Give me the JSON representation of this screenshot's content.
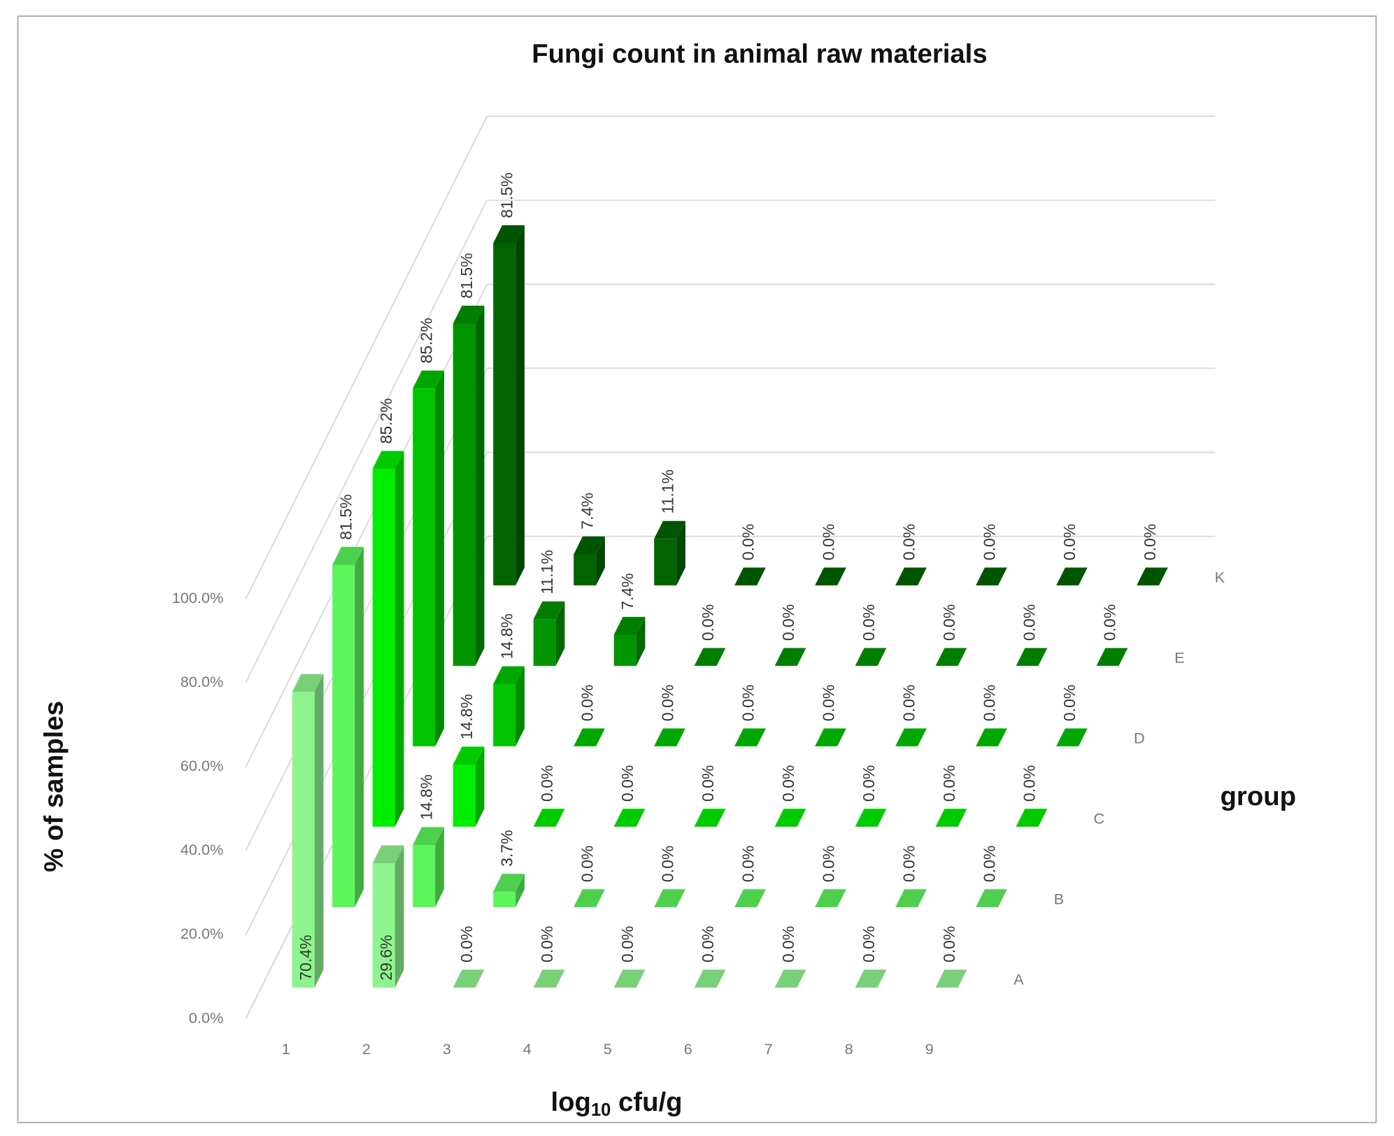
{
  "chart_data": {
    "type": "bar3d",
    "title": "Fungi count in animal raw materials",
    "ylabel": "% of samples",
    "xlabel_parts": [
      "log",
      "10",
      " cfu/g"
    ],
    "zlabel": "group",
    "categories": [
      "1",
      "2",
      "3",
      "4",
      "5",
      "6",
      "7",
      "8",
      "9"
    ],
    "ylim": [
      0,
      100
    ],
    "yticks": [
      {
        "value": 0,
        "label": "0.0%"
      },
      {
        "value": 20,
        "label": "20.0%"
      },
      {
        "value": 40,
        "label": "40.0%"
      },
      {
        "value": 60,
        "label": "60.0%"
      },
      {
        "value": 80,
        "label": "80.0%"
      },
      {
        "value": 100,
        "label": "100.0%"
      }
    ],
    "grid": true,
    "series": [
      {
        "name": "A",
        "color": "#8ef58e",
        "values": [
          70.4,
          29.6,
          0,
          0,
          0,
          0,
          0,
          0,
          0
        ],
        "value_labels": [
          "70.4%",
          "29.6%",
          "0.0%",
          "0.0%",
          "0.0%",
          "0.0%",
          "0.0%",
          "0.0%",
          "0.0%"
        ]
      },
      {
        "name": "B",
        "color": "#5cf55c",
        "values": [
          81.5,
          14.8,
          3.7,
          0,
          0,
          0,
          0,
          0,
          0
        ],
        "value_labels": [
          "81.5%",
          "14.8%",
          "3.7%",
          "0.0%",
          "0.0%",
          "0.0%",
          "0.0%",
          "0.0%",
          "0.0%"
        ]
      },
      {
        "name": "C",
        "color": "#00ee00",
        "values": [
          85.2,
          14.8,
          0,
          0,
          0,
          0,
          0,
          0,
          0
        ],
        "value_labels": [
          "85.2%",
          "14.8%",
          "0.0%",
          "0.0%",
          "0.0%",
          "0.0%",
          "0.0%",
          "0.0%",
          "0.0%"
        ]
      },
      {
        "name": "D",
        "color": "#00c400",
        "values": [
          85.2,
          14.8,
          0,
          0,
          0,
          0,
          0,
          0,
          0
        ],
        "value_labels": [
          "85.2%",
          "14.8%",
          "0.0%",
          "0.0%",
          "0.0%",
          "0.0%",
          "0.0%",
          "0.0%",
          "0.0%"
        ]
      },
      {
        "name": "E",
        "color": "#009400",
        "values": [
          81.5,
          11.1,
          7.4,
          0,
          0,
          0,
          0,
          0,
          0
        ],
        "value_labels": [
          "81.5%",
          "11.1%",
          "7.4%",
          "0.0%",
          "0.0%",
          "0.0%",
          "0.0%",
          "0.0%",
          "0.0%"
        ]
      },
      {
        "name": "K",
        "color": "#006400",
        "values": [
          81.5,
          7.4,
          11.1,
          0,
          0,
          0,
          0,
          0,
          0
        ],
        "value_labels": [
          "81.5%",
          "7.4%",
          "11.1%",
          "0.0%",
          "0.0%",
          "0.0%",
          "0.0%",
          "0.0%",
          "0.0%"
        ]
      }
    ]
  }
}
